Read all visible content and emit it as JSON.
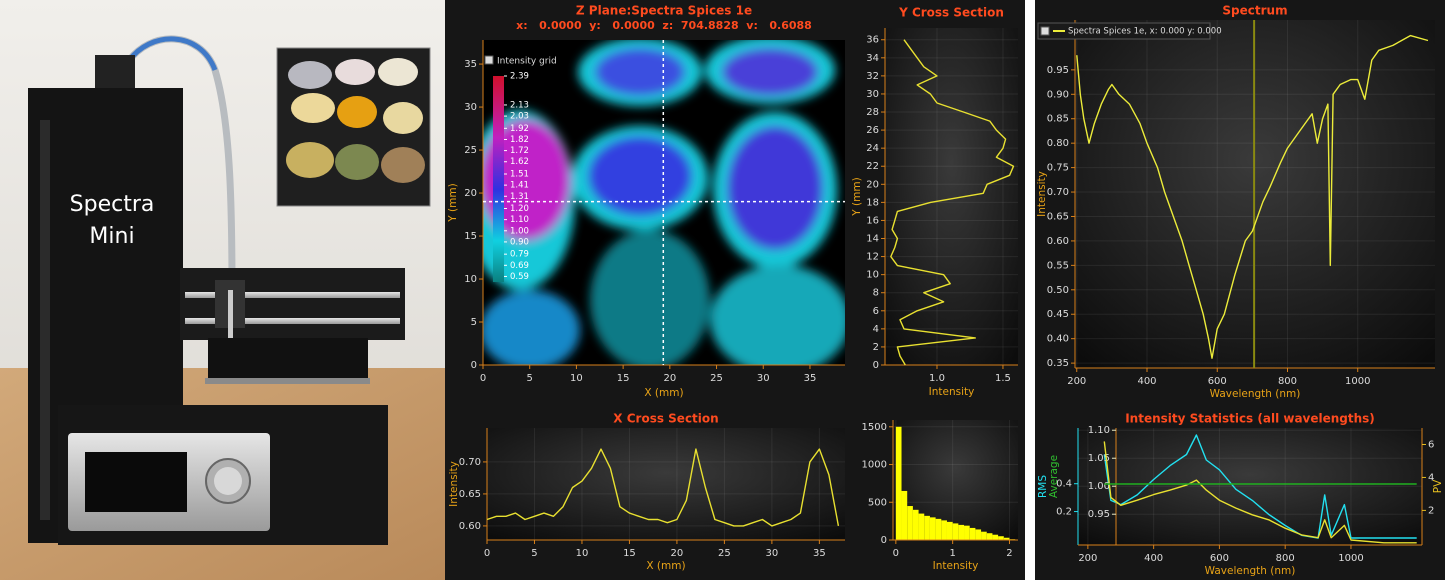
{
  "photo": {
    "device_label": [
      "Spectra",
      "Mini"
    ]
  },
  "chart_data": [
    {
      "type": "heatmap",
      "title": "Z Plane:Spectra Spices 1e",
      "readout": "x:   0.0000  y:   0.0000  z:  704.8828  v:   0.6088",
      "xlabel": "X (mm)",
      "ylabel": "Y (mm)",
      "legend": "Intensity grid",
      "xlim": [
        0,
        38.75
      ],
      "ylim": [
        0,
        37.8
      ],
      "xticks": [
        0,
        5,
        10,
        15,
        20,
        25,
        30,
        35
      ],
      "yticks": [
        0,
        5,
        10,
        15,
        20,
        25,
        30,
        35
      ],
      "cursor": {
        "x": 19.3,
        "y": 19
      },
      "colorbar": {
        "lim": [
          0.54,
          2.39
        ],
        "ticks": [
          2.39,
          2.13,
          2.03,
          1.92,
          1.82,
          1.72,
          1.62,
          1.51,
          1.41,
          1.31,
          {
            "value": 1.2,
            "label": "1.20"
          },
          {
            "value": 1.1,
            "label": "1.10"
          },
          {
            "value": 1,
            "label": "1.00"
          },
          {
            "value": 0.9,
            "label": "0.90"
          },
          0.79,
          0.69,
          0.59
        ]
      }
    },
    {
      "type": "line",
      "orientation": "vertical",
      "title": "Y Cross Section",
      "xlabel": "Intensity",
      "ylabel": "Y (mm)",
      "y": [
        0,
        1,
        2,
        3,
        4,
        5,
        6,
        7,
        8,
        9,
        10,
        11,
        12,
        13,
        14,
        15,
        16,
        17,
        18,
        19,
        20,
        21,
        22,
        23,
        24,
        25,
        26,
        27,
        28,
        29,
        30,
        31,
        32,
        33,
        34,
        35,
        36
      ],
      "values": [
        0.76,
        0.72,
        0.7,
        1.29,
        0.75,
        0.72,
        0.85,
        1.05,
        0.9,
        1.1,
        1.05,
        0.7,
        0.65,
        0.68,
        0.7,
        0.66,
        0.68,
        0.7,
        0.95,
        1.35,
        1.38,
        1.55,
        1.58,
        1.45,
        1.5,
        1.52,
        1.45,
        1.4,
        1.2,
        1.0,
        0.95,
        0.85,
        1.0,
        0.9,
        0.85,
        0.8,
        0.75
      ],
      "color": "#e8e030",
      "xlim": [
        0.606,
        1.614
      ],
      "ylim": [
        0,
        37.3
      ],
      "xticks": [
        {
          "value": 1,
          "label": "1.0"
        },
        1.5
      ],
      "yticks": [
        0,
        2,
        4,
        6,
        8,
        10,
        12,
        14,
        16,
        18,
        20,
        22,
        24,
        26,
        28,
        30,
        32,
        34,
        36
      ],
      "grid": true
    },
    {
      "type": "line",
      "title": "X Cross Section",
      "xlabel": "X (mm)",
      "ylabel": "Intensity",
      "x": [
        0,
        1,
        2,
        3,
        4,
        5,
        6,
        7,
        8,
        9,
        10,
        11,
        12,
        13,
        14,
        15,
        16,
        17,
        18,
        19,
        20,
        21,
        22,
        23,
        24,
        25,
        26,
        27,
        28,
        29,
        30,
        31,
        32,
        33,
        34,
        35,
        36,
        37
      ],
      "values": [
        0.61,
        0.615,
        0.615,
        0.62,
        0.61,
        0.615,
        0.62,
        0.615,
        0.63,
        0.66,
        0.67,
        0.69,
        0.72,
        0.69,
        0.63,
        0.62,
        0.615,
        0.61,
        0.61,
        0.605,
        0.61,
        0.64,
        0.72,
        0.66,
        0.61,
        0.605,
        0.6,
        0.6,
        0.605,
        0.61,
        0.6,
        0.605,
        0.61,
        0.62,
        0.7,
        0.72,
        0.68,
        0.6
      ],
      "color": "#e8e030",
      "xlim": [
        0,
        37.7
      ],
      "ylim": [
        0.578,
        0.753
      ],
      "xticks": [
        0,
        5,
        10,
        15,
        20,
        25,
        30,
        35
      ],
      "yticks": [
        {
          "value": 0.6,
          "label": "0.60"
        },
        0.65,
        {
          "value": 0.7,
          "label": "0.70"
        }
      ],
      "grid": true
    },
    {
      "type": "histogram",
      "xlabel": "Intensity",
      "bins": [
        0,
        0.1,
        0.2,
        0.3,
        0.4,
        0.5,
        0.6,
        0.7,
        0.8,
        0.9,
        1.0,
        1.1,
        1.2,
        1.3,
        1.4,
        1.5,
        1.6,
        1.7,
        1.8,
        1.9,
        2.0,
        2.1
      ],
      "values": [
        1500,
        650,
        450,
        400,
        350,
        320,
        300,
        280,
        260,
        240,
        220,
        200,
        190,
        160,
        140,
        110,
        90,
        70,
        50,
        30,
        10
      ],
      "color": "#ffff00",
      "xlim": [
        -0.05,
        2.15
      ],
      "ylim": [
        0,
        1590
      ],
      "xticks": [
        0,
        1,
        2
      ],
      "yticks": [
        0,
        500,
        1000,
        1500
      ],
      "grid": true
    },
    {
      "type": "line",
      "title": "Spectrum",
      "xlabel": "Wavelength (nm)",
      "ylabel": "Intensity",
      "legend": "Spectra Spices 1e, x: 0.000 y: 0.000",
      "x": [
        200,
        210,
        220,
        235,
        250,
        270,
        290,
        300,
        320,
        350,
        380,
        400,
        430,
        450,
        480,
        500,
        520,
        540,
        560,
        575,
        585,
        600,
        620,
        650,
        680,
        700,
        730,
        750,
        780,
        800,
        830,
        850,
        870,
        885,
        900,
        915,
        922,
        930,
        950,
        980,
        1000,
        1020,
        1040,
        1060,
        1100,
        1150,
        1200
      ],
      "values": [
        0.98,
        0.9,
        0.85,
        0.8,
        0.84,
        0.88,
        0.91,
        0.92,
        0.9,
        0.88,
        0.84,
        0.8,
        0.75,
        0.7,
        0.64,
        0.6,
        0.55,
        0.5,
        0.45,
        0.4,
        0.36,
        0.42,
        0.45,
        0.53,
        0.6,
        0.62,
        0.68,
        0.71,
        0.76,
        0.79,
        0.82,
        0.84,
        0.86,
        0.8,
        0.85,
        0.88,
        0.55,
        0.9,
        0.92,
        0.93,
        0.93,
        0.89,
        0.97,
        0.99,
        1.0,
        1.02,
        1.01
      ],
      "color": "#ecec3a",
      "marker_x": 705,
      "marker_color": "#8a8a10",
      "xlim": [
        195,
        1220
      ],
      "ylim": [
        0.34,
        1.052
      ],
      "xticks": [
        200,
        400,
        600,
        800,
        1000
      ],
      "yticks": [
        0.35,
        {
          "value": 0.4,
          "label": "0.40"
        },
        0.45,
        {
          "value": 0.5,
          "label": "0.50"
        },
        0.55,
        {
          "value": 0.6,
          "label": "0.60"
        },
        0.65,
        {
          "value": 0.7,
          "label": "0.70"
        },
        0.75,
        {
          "value": 0.8,
          "label": "0.80"
        },
        0.85,
        {
          "value": 0.9,
          "label": "0.90"
        },
        0.95
      ],
      "grid": true
    },
    {
      "type": "line",
      "title": "Intensity Statistics (all wavelengths)",
      "xlabel": "Wavelength (nm)",
      "ylabel": "RMS",
      "y2label": "Average",
      "y3label": "PV",
      "x": [
        250,
        270,
        300,
        350,
        400,
        450,
        500,
        530,
        560,
        600,
        650,
        700,
        750,
        800,
        850,
        900,
        920,
        940,
        980,
        1000,
        1100,
        1200
      ],
      "series": [
        {
          "color": "#22e0f0",
          "axis": "y",
          "values": [
            0.61,
            0.28,
            0.25,
            0.32,
            0.43,
            0.53,
            0.61,
            0.75,
            0.57,
            0.5,
            0.36,
            0.28,
            0.18,
            0.1,
            0.03,
            0.01,
            0.32,
            0.03,
            0.25,
            0.01,
            0.01,
            0.01
          ]
        },
        {
          "color": "#e8e030",
          "axis": "y2",
          "values": [
            1.08,
            0.98,
            0.966,
            0.975,
            0.985,
            0.993,
            1.002,
            1.011,
            0.993,
            0.975,
            0.961,
            0.949,
            0.94,
            0.925,
            0.913,
            0.908,
            0.94,
            0.908,
            0.93,
            0.904,
            0.899,
            0.899
          ]
        },
        {
          "color": "#20b020",
          "axis": "y3",
          "values": [
            3.6,
            3.6,
            3.6,
            3.6,
            3.6,
            3.6,
            3.6,
            3.6,
            3.6,
            3.6,
            3.6,
            3.6,
            3.6,
            3.6,
            3.6,
            3.6,
            3.6,
            3.6,
            3.6,
            3.6,
            3.6,
            3.6
          ]
        }
      ],
      "xlim": [
        170,
        1216
      ],
      "ylim": [
        -0.04,
        0.8
      ],
      "y2lim": [
        0.895,
        1.104
      ],
      "y3lim": [
        -0.1,
        7
      ],
      "xticks": [
        200,
        400,
        600,
        800,
        1000
      ],
      "yticks": [
        0.2,
        0.4
      ],
      "y2ticks": [
        0.95,
        {
          "value": 1,
          "label": "1.00"
        },
        1.05,
        {
          "value": 1.1,
          "label": "1.10"
        }
      ],
      "y3ticks": [
        2,
        4,
        6
      ],
      "grid": true
    }
  ]
}
